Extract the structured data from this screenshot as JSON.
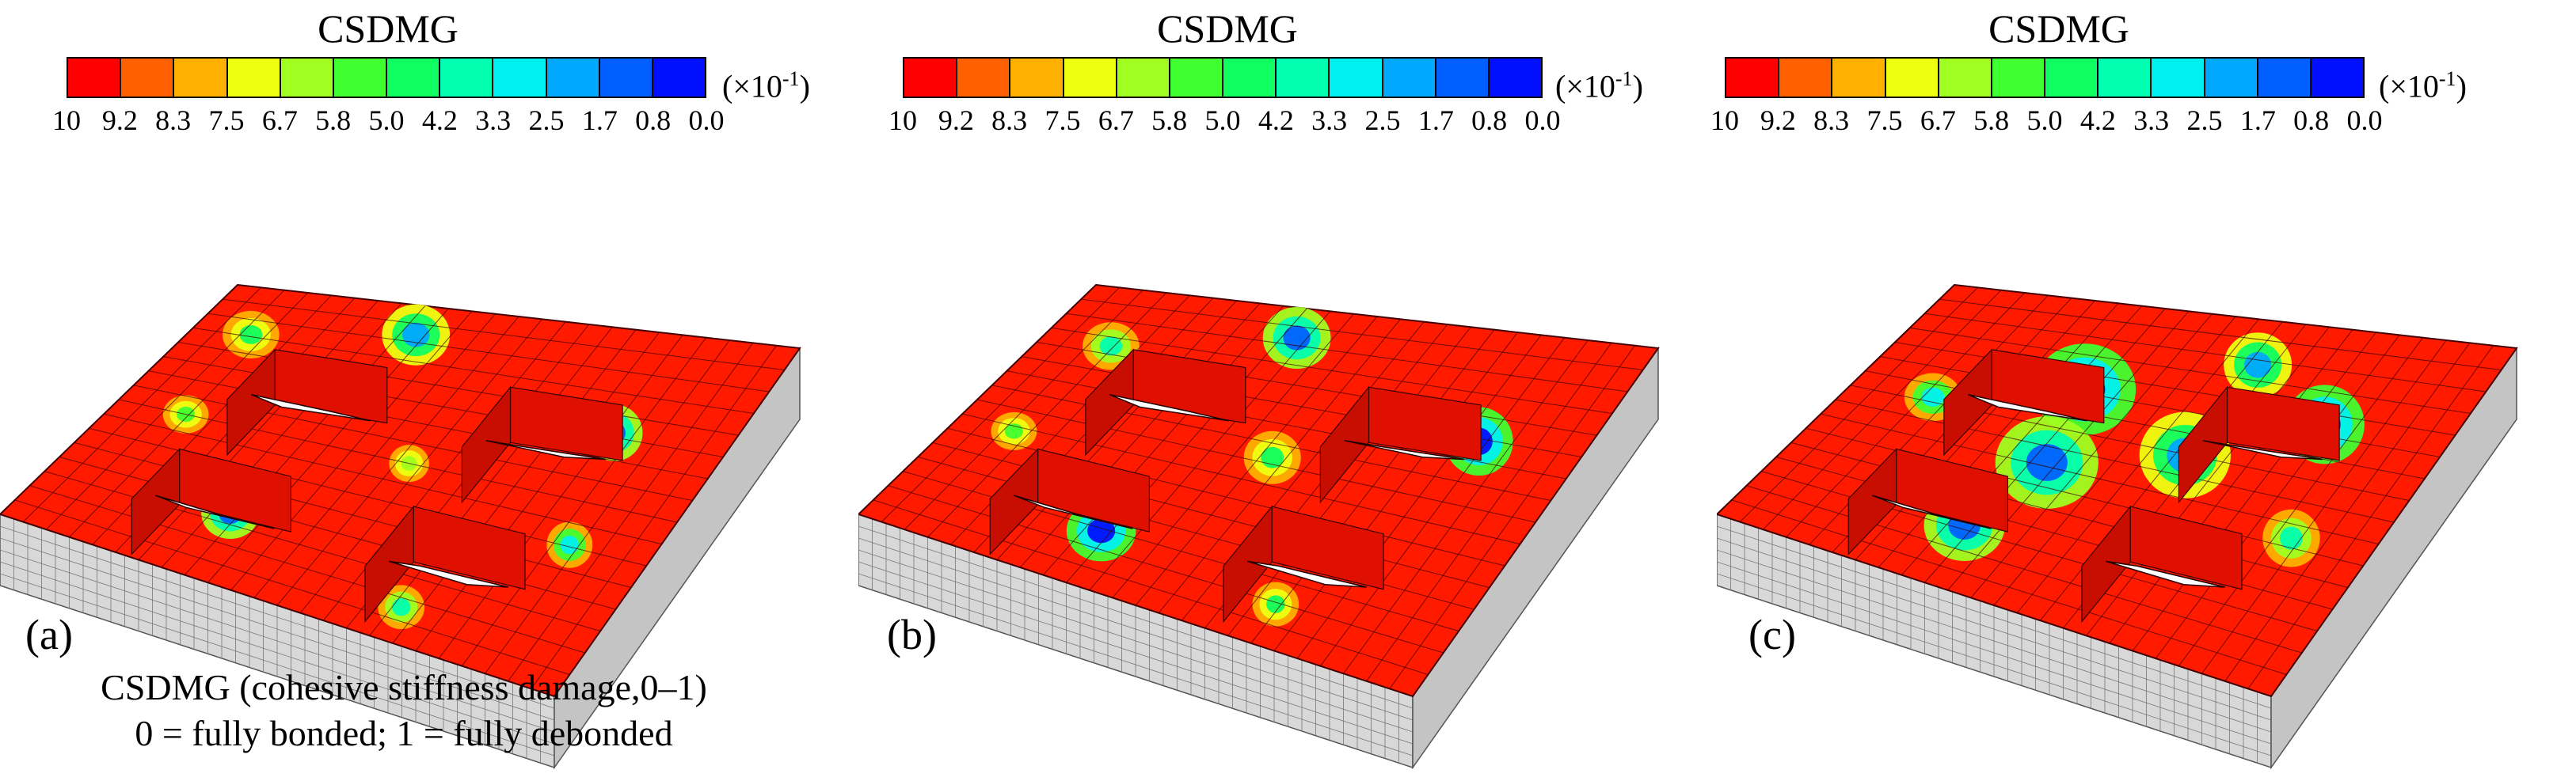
{
  "legend": {
    "title": "CSDMG",
    "unit_base": "(×10",
    "unit_exp": "-1",
    "unit_close": ")",
    "ticks": [
      "10",
      "9.2",
      "8.3",
      "7.5",
      "6.7",
      "5.8",
      "5.0",
      "4.2",
      "3.3",
      "2.5",
      "1.7",
      "0.8",
      "0.0"
    ],
    "colors": [
      "#ff0000",
      "#ff6000",
      "#ffb000",
      "#eeff10",
      "#a0ff20",
      "#40ff30",
      "#10ff60",
      "#00ffb0",
      "#00f0f0",
      "#00a8ff",
      "#0060ff",
      "#0010ff"
    ]
  },
  "panels": [
    {
      "label": "(a)",
      "damage": "low"
    },
    {
      "label": "(b)",
      "damage": "medium"
    },
    {
      "label": "(c)",
      "damage": "high"
    }
  ],
  "caption": {
    "line1": "CSDMG (cohesive stiffness damage,0–1)",
    "line2": "0 = fully bonded; 1 = fully debonded"
  },
  "colors": {
    "bonded_red": "#ff1a00",
    "mesh_line": "#3a0000",
    "side_face": "#d8d8d8",
    "hole": "#ffffff"
  }
}
